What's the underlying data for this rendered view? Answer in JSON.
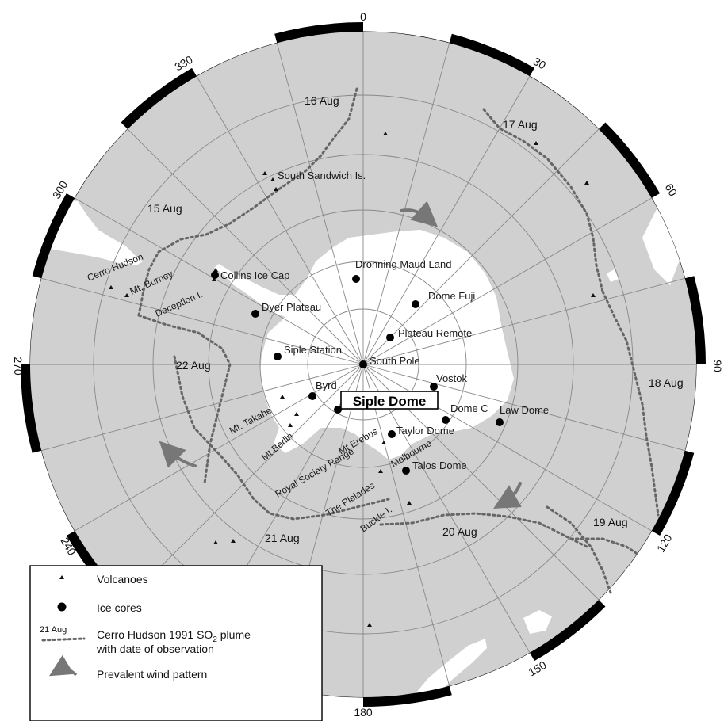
{
  "graticule": {
    "longitude_labels": [
      "0",
      "30",
      "60",
      "90",
      "120",
      "150",
      "180",
      "240",
      "270",
      "300",
      "330"
    ]
  },
  "places": {
    "dronning_maud_land": "Dronning Maud Land",
    "dome_fuji": "Dome Fuji",
    "plateau_remote": "Plateau Remote",
    "south_pole": "South Pole",
    "vostok": "Vostok",
    "siple_dome": "Siple Dome",
    "dome_c": "Dome C",
    "law_dome": "Law Dome",
    "taylor_dome": "Taylor Dome",
    "talos_dome": "Talos Dome",
    "byrd": "Byrd",
    "siple_station": "Siple Station",
    "dyer_plateau": "Dyer Plateau",
    "collins_ice_cap": "Collins Ice Cap",
    "south_sandwich": "South Sandwich Is.",
    "cerro_hudson": "Cerro Hudson",
    "mt_burney": "Mt. Burney",
    "deception": "Deception I.",
    "mt_takahe": "Mt. Takahe",
    "mt_berlin": "Mt.Berlin",
    "mt_erebus": "Mt.Erebus",
    "royal_society": "Royal Society Range",
    "melbourne": "Melbourne",
    "pleiades": "The Pleiades",
    "buckle": "Buckle I."
  },
  "plume_dates": {
    "d15": "15 Aug",
    "d16": "16 Aug",
    "d17": "17 Aug",
    "d18": "18 Aug",
    "d19": "19 Aug",
    "d20": "20 Aug",
    "d21": "21 Aug",
    "d22": "22 Aug"
  },
  "legend": {
    "volcanoes": "Volcanoes",
    "ice_cores": "Ice cores",
    "sample_date": "21 Aug",
    "plume_line1_pre": "Cerro Hudson 1991 SO",
    "plume_sub": "2",
    "plume_line1_post": " plume",
    "plume_line2": "with date of observation",
    "wind": "Prevalent wind pattern"
  },
  "colors": {
    "ocean": "#d0d0d0",
    "land": "#ffffff",
    "border_dark": "#000000",
    "plume": "#666666",
    "wind_arrow": "#777777"
  }
}
